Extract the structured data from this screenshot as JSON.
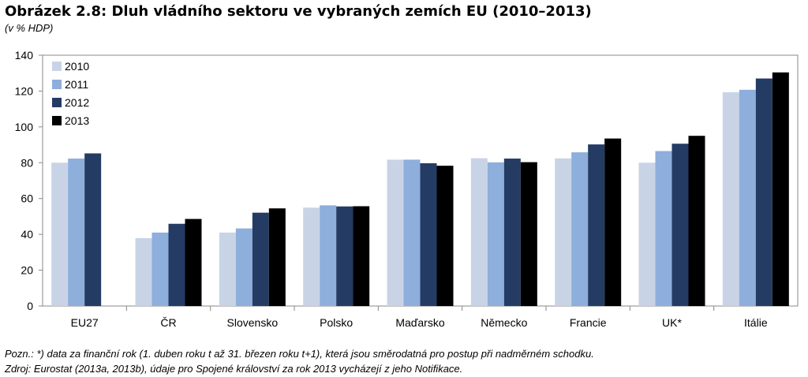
{
  "chart_data": {
    "type": "bar",
    "title": "Obrázek 2.8: Dluh vládního sektoru ve vybraných zemích EU (2010–2013)",
    "subtitle": "(v % HDP)",
    "xlabel": "",
    "ylabel": "",
    "ylim": [
      0,
      140
    ],
    "yticks": [
      0,
      20,
      40,
      60,
      80,
      100,
      120,
      140
    ],
    "grid": false,
    "legend": "top-left",
    "categories": [
      "EU27",
      "ČR",
      "Slovensko",
      "Polsko",
      "Maďarsko",
      "Německo",
      "Francie",
      "UK*",
      "Itálie"
    ],
    "series": [
      {
        "name": "2010",
        "color": "#c8d4e6",
        "values": [
          80.0,
          37.9,
          41.0,
          54.9,
          81.7,
          82.5,
          82.4,
          80.0,
          119.3
        ]
      },
      {
        "name": "2011",
        "color": "#8eaedc",
        "values": [
          82.3,
          41.0,
          43.3,
          56.2,
          81.7,
          80.2,
          85.8,
          86.5,
          120.7
        ]
      },
      {
        "name": "2012",
        "color": "#243c64",
        "values": [
          85.2,
          45.9,
          52.1,
          55.6,
          79.7,
          82.3,
          90.2,
          90.6,
          127.0
        ]
      },
      {
        "name": "2013",
        "color": "#000000",
        "values": [
          null,
          48.6,
          54.5,
          55.7,
          78.3,
          80.3,
          93.5,
          95.0,
          130.4
        ]
      }
    ]
  },
  "notes": {
    "note1": "Pozn.: *) data za finanční rok (1. duben roku t až 31. březen roku t+1), která jsou směrodatná pro postup při nadměrném schodku.",
    "note2": "Zdroj: Eurostat (2013a, 2013b), údaje pro Spojené království za rok 2013 vycházejí z jeho Notifikace."
  }
}
